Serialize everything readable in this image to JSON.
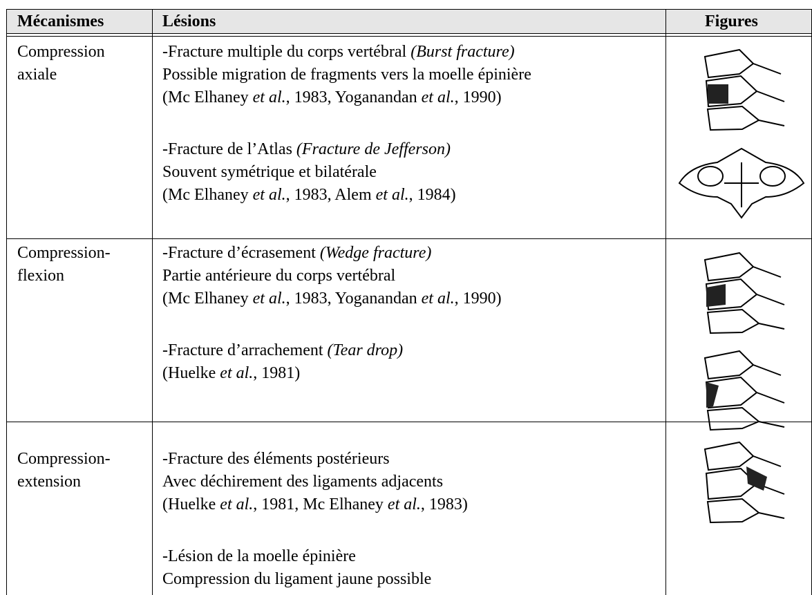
{
  "table": {
    "header": [
      "Mécanismes",
      "Lésions",
      "Figures"
    ],
    "rows": [
      {
        "mechanism": [
          "Compression",
          "axiale"
        ],
        "lesions": [
          [
            [
              "-Fracture multiple du corps vertébral ",
              {
                "italic": "(Burst fracture)"
              }
            ],
            [
              "Possible migration de fragments vers la moelle épinière"
            ],
            [
              "(Mc Elhaney ",
              {
                "italic": "et al."
              },
              ", 1983, Yoganandan ",
              {
                "italic": "et al."
              },
              ", 1990)"
            ]
          ],
          [
            [
              "-Fracture de l’Atlas ",
              {
                "italic": "(Fracture de Jefferson)"
              }
            ],
            [
              "Souvent symétrique et bilatérale"
            ],
            [
              "(Mc Elhaney ",
              {
                "italic": "et al."
              },
              ", 1983, Alem ",
              {
                "italic": "et al."
              },
              ", 1984)"
            ]
          ]
        ]
      },
      {
        "mechanism": [
          "Compression-",
          "flexion"
        ],
        "lesions": [
          [
            [
              "-Fracture d’écrasement ",
              {
                "italic": "(Wedge fracture)"
              }
            ],
            [
              "Partie antérieure du corps vertébral"
            ],
            [
              "(Mc Elhaney ",
              {
                "italic": "et al."
              },
              ", 1983, Yoganandan ",
              {
                "italic": "et al."
              },
              ", 1990)"
            ]
          ],
          [
            [
              "-Fracture d’arrachement ",
              {
                "italic": "(Tear drop)"
              }
            ],
            [
              "(Huelke ",
              {
                "italic": "et al."
              },
              ", 1981)"
            ]
          ]
        ]
      },
      {
        "mechanism": [
          "Compression-",
          "extension"
        ],
        "lesions": [
          [
            [
              "-Fracture des éléments postérieurs"
            ],
            [
              "Avec déchirement des ligaments adjacents"
            ],
            [
              "(Huelke ",
              {
                "italic": "et al."
              },
              ", 1981, Mc Elhaney ",
              {
                "italic": "et al."
              },
              ", 1983)"
            ]
          ],
          [
            [
              "-Lésion de la moelle épinière"
            ],
            [
              "Compression du ligament jaune possible"
            ]
          ]
        ]
      }
    ]
  }
}
